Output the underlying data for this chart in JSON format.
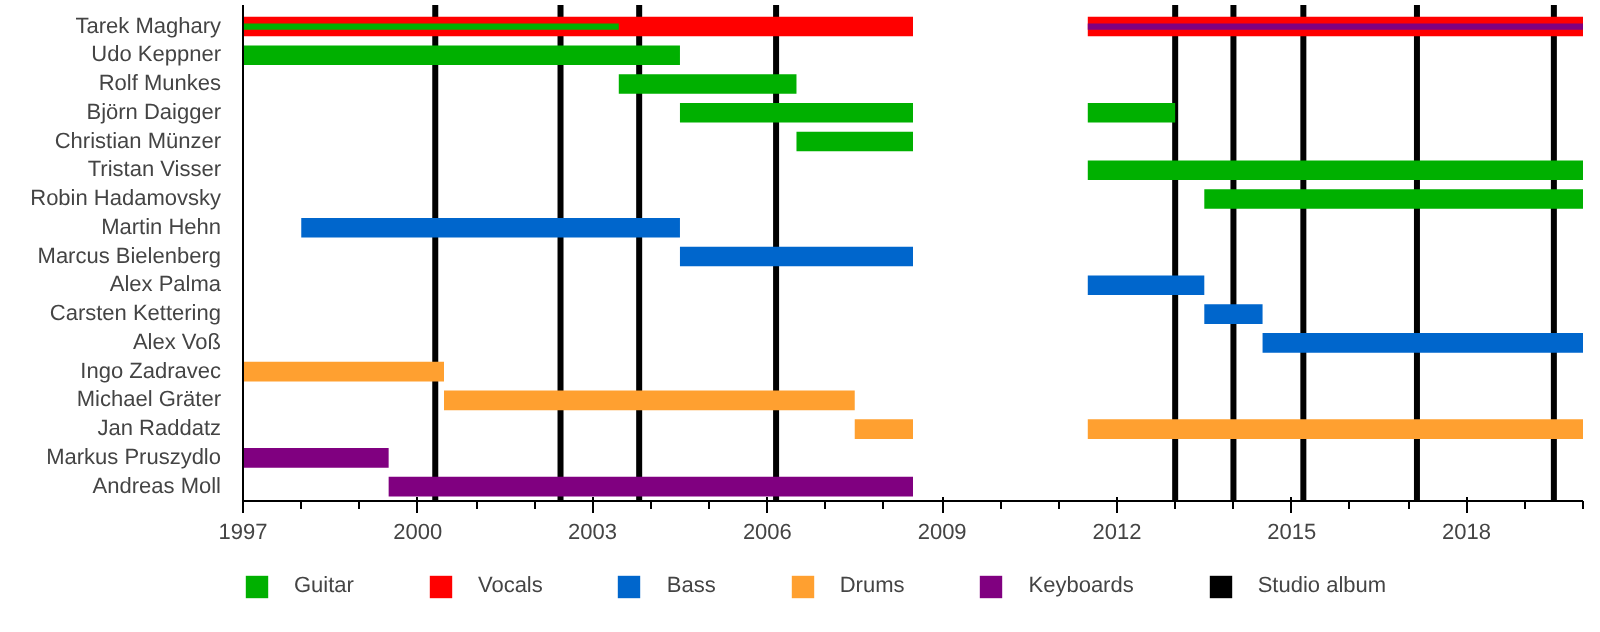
{
  "chart_data": {
    "type": "bar",
    "orientation": "horizontal",
    "categories": [
      "Tarek Maghary",
      "Udo Keppner",
      "Rolf Munkes",
      "Björn Daigger",
      "Christian Münzer",
      "Tristan Visser",
      "Robin Hadamovsky",
      "Martin Hehn",
      "Marcus Bielenberg",
      "Alex Palma",
      "Carsten Kettering",
      "Alex Voß",
      "Ingo Zadravec",
      "Michael Gräter",
      "Jan Raddatz",
      "Markus Pruszydlo",
      "Andreas Moll"
    ],
    "series": [
      {
        "name": "Guitar",
        "color": "#00b000",
        "base": [
          1997,
          1997,
          2003.45,
          2004.5,
          2006.5,
          2011.5,
          2013.5,
          null,
          null,
          null,
          null,
          null,
          null,
          null,
          null,
          null,
          null
        ],
        "values": [
          6.45,
          7.5,
          3.05,
          4,
          2,
          8.5,
          6.5,
          null,
          null,
          null,
          null,
          null,
          null,
          null,
          null,
          null,
          null
        ]
      },
      {
        "color": "#00b000",
        "base": [
          null,
          null,
          null,
          2011.5,
          null,
          null,
          null,
          null,
          null,
          null,
          null,
          null,
          null,
          null,
          null,
          null,
          null
        ],
        "values": [
          null,
          null,
          null,
          1.5,
          null,
          null,
          null,
          null,
          null,
          null,
          null,
          null,
          null,
          null,
          null,
          null,
          null
        ]
      },
      {
        "name": "Vocals",
        "color": "#ff0000",
        "base": [
          1997,
          null,
          null,
          null,
          null,
          null,
          null,
          null,
          null,
          null,
          null,
          null,
          null,
          null,
          null,
          null,
          null
        ],
        "values": [
          11.5,
          null,
          null,
          null,
          null,
          null,
          null,
          null,
          null,
          null,
          null,
          null,
          null,
          null,
          null,
          null,
          null
        ]
      },
      {
        "color": "#ff0000",
        "base": [
          2011.5,
          null,
          null,
          null,
          null,
          null,
          null,
          null,
          null,
          null,
          null,
          null,
          null,
          null,
          null,
          null,
          null
        ],
        "values": [
          8.5,
          null,
          null,
          null,
          null,
          null,
          null,
          null,
          null,
          null,
          null,
          null,
          null,
          null,
          null,
          null,
          null
        ]
      },
      {
        "name": "Bass",
        "color": "#0066cc",
        "base": [
          null,
          null,
          null,
          null,
          null,
          null,
          null,
          1998,
          2004.5,
          2011.5,
          2013.5,
          2014.5,
          null,
          null,
          null,
          null,
          null
        ],
        "values": [
          null,
          null,
          null,
          null,
          null,
          null,
          null,
          6.5,
          4,
          2,
          1,
          5.5,
          null,
          null,
          null,
          null,
          null
        ]
      },
      {
        "name": "Drums",
        "color": "#ffa030",
        "base": [
          null,
          null,
          null,
          null,
          null,
          null,
          null,
          null,
          null,
          null,
          null,
          null,
          1997,
          2000.45,
          2007.5,
          null,
          null
        ],
        "values": [
          null,
          null,
          null,
          null,
          null,
          null,
          null,
          null,
          null,
          null,
          null,
          null,
          3.45,
          7.05,
          1,
          null,
          null
        ]
      },
      {
        "color": "#ffa030",
        "base": [
          null,
          null,
          null,
          null,
          null,
          null,
          null,
          null,
          null,
          null,
          null,
          null,
          null,
          null,
          2011.5,
          null,
          null
        ],
        "values": [
          null,
          null,
          null,
          null,
          null,
          null,
          null,
          null,
          null,
          null,
          null,
          null,
          null,
          null,
          8.5,
          null,
          null
        ]
      },
      {
        "name": "Keyboards",
        "color": "#800080",
        "base": [
          2011.5,
          null,
          null,
          null,
          null,
          null,
          null,
          null,
          null,
          null,
          null,
          null,
          null,
          null,
          null,
          1997,
          1999.5
        ],
        "values": [
          8.5,
          null,
          null,
          null,
          null,
          null,
          null,
          null,
          null,
          null,
          null,
          null,
          null,
          null,
          null,
          2.5,
          9
        ]
      }
    ],
    "ref_lines": [
      {
        "axis": "x",
        "value": 2000.3,
        "label": "Studio album",
        "color": "#000000"
      },
      {
        "axis": "x",
        "value": 2002.45,
        "color": "#000000"
      },
      {
        "axis": "x",
        "value": 2003.8,
        "color": "#000000"
      },
      {
        "axis": "x",
        "value": 2006.15,
        "color": "#000000"
      },
      {
        "axis": "x",
        "value": 2013,
        "color": "#000000"
      },
      {
        "axis": "x",
        "value": 2014,
        "color": "#000000"
      },
      {
        "axis": "x",
        "value": 2015.2,
        "color": "#000000"
      },
      {
        "axis": "x",
        "value": 2017.15,
        "color": "#000000"
      },
      {
        "axis": "x",
        "value": 2019.5,
        "color": "#000000"
      }
    ],
    "xlim": [
      1997,
      2020
    ],
    "xticks": [
      1997,
      {
        "value": 1998,
        "label": null
      },
      {
        "value": 1999,
        "label": null
      },
      2000,
      {
        "value": 2001,
        "label": null
      },
      {
        "value": 2002,
        "label": null
      },
      2003,
      {
        "value": 2004,
        "label": null
      },
      {
        "value": 2005,
        "label": null
      },
      2006,
      {
        "value": 2007,
        "label": null
      },
      {
        "value": 2008,
        "label": null
      },
      2009,
      {
        "value": 2010,
        "label": null
      },
      {
        "value": 2011,
        "label": null
      },
      2012,
      {
        "value": 2013,
        "label": null
      },
      {
        "value": 2014,
        "label": null
      },
      2015,
      {
        "value": 2016,
        "label": null
      },
      {
        "value": 2017,
        "label": null
      },
      2018,
      {
        "value": 2019,
        "label": null
      },
      {
        "value": 2020,
        "label": null
      }
    ],
    "grid": false,
    "legend": "bottom"
  }
}
